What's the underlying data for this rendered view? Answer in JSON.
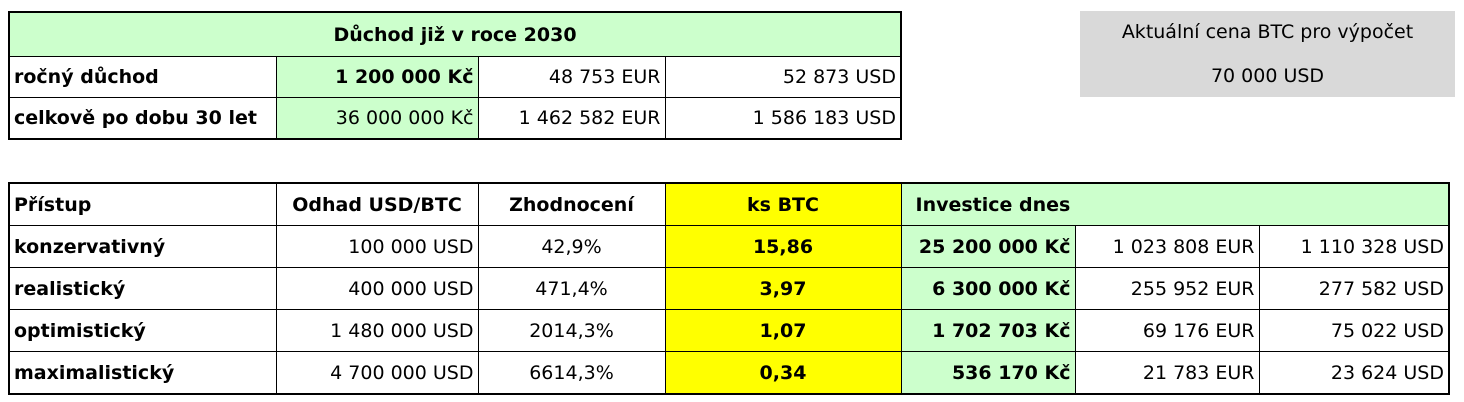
{
  "pension": {
    "title": "Důchod již v roce 2030",
    "rows": [
      {
        "label": "ročný důchod",
        "czk": "1 200 000 Kč",
        "eur": "48 753 EUR",
        "usd": "52 873 USD"
      },
      {
        "label": "celkově po dobu 30 let",
        "czk": "36 000 000 Kč",
        "eur": "1 462 582 EUR",
        "usd": "1 586 183 USD"
      }
    ]
  },
  "price_box": {
    "label": "Aktuální cena BTC pro výpočet",
    "value": "70 000 USD"
  },
  "approach_table": {
    "headers": {
      "approach": "Přístup",
      "estimate": "Odhad USD/BTC",
      "appreciation": "Zhodnocení",
      "btc_count": "ks BTC",
      "investment": "Investice dnes"
    },
    "rows": [
      {
        "approach": "konzervativný",
        "estimate": "100 000 USD",
        "appreciation": "42,9%",
        "btc": "15,86",
        "czk": "25 200 000 Kč",
        "eur": "1 023 808 EUR",
        "usd": "1 110 328 USD"
      },
      {
        "approach": "realistický",
        "estimate": "400 000 USD",
        "appreciation": "471,4%",
        "btc": "3,97",
        "czk": "6 300 000 Kč",
        "eur": "255 952 EUR",
        "usd": "277 582 USD"
      },
      {
        "approach": "optimistický",
        "estimate": "1 480 000 USD",
        "appreciation": "2014,3%",
        "btc": "1,07",
        "czk": "1 702 703 Kč",
        "eur": "69 176 EUR",
        "usd": "75 022 USD"
      },
      {
        "approach": "maximalistický",
        "estimate": "4 700 000 USD",
        "appreciation": "6614,3%",
        "btc": "0,34",
        "czk": "536 170 Kč",
        "eur": "21 783 EUR",
        "usd": "23 624 USD"
      }
    ]
  },
  "colors": {
    "green_fill": "#ccffcc",
    "yellow_fill": "#ffff00",
    "gray_fill": "#d9d9d9"
  }
}
